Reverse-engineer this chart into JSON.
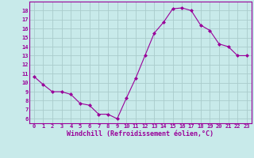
{
  "hours": [
    0,
    1,
    2,
    3,
    4,
    5,
    6,
    7,
    8,
    9,
    10,
    11,
    12,
    13,
    14,
    15,
    16,
    17,
    18,
    19,
    20,
    21,
    22,
    23
  ],
  "values": [
    10.7,
    9.8,
    9.0,
    9.0,
    8.7,
    7.7,
    7.5,
    6.5,
    6.5,
    6.0,
    8.3,
    10.5,
    13.0,
    15.5,
    16.7,
    18.2,
    18.3,
    18.0,
    16.4,
    15.8,
    14.3,
    14.0,
    13.0,
    13.0
  ],
  "line_color": "#990099",
  "marker": "D",
  "marker_size": 2,
  "bg_color": "#c8eaea",
  "grid_color": "#aacccc",
  "ylim": [
    5.5,
    19
  ],
  "yticks": [
    6,
    7,
    8,
    9,
    10,
    11,
    12,
    13,
    14,
    15,
    16,
    17,
    18
  ],
  "xlabel": "Windchill (Refroidissement éolien,°C)",
  "axis_color": "#990099"
}
